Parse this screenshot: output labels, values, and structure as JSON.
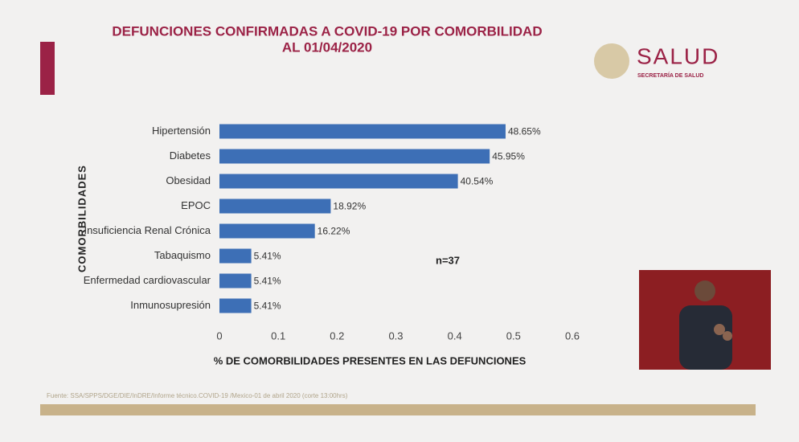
{
  "header": {
    "logo_title": "SALUD",
    "logo_subtitle": "SECRETARÍA DE SALUD"
  },
  "source": "Fuente: SSA/SPPS/DGE/DIE/InDRE/Informe técnico.COVID-19 /Mexico-01 de abril 2020 (corte 13:00hrs)",
  "chart_data": {
    "type": "bar",
    "orientation": "horizontal",
    "title": "DEFUNCIONES CONFIRMADAS A COVID-19 POR COMORBILIDAD",
    "subtitle": "AL 01/04/2020",
    "y_label": "COMORBILIDADES",
    "x_label": "% DE COMORBILIDADES PRESENTES EN LAS DEFUNCIONES",
    "annotation": "n=37",
    "categories": [
      "Hipertensión",
      "Diabetes",
      "Obesidad",
      "EPOC",
      "Insuficiencia Renal Crónica",
      "Tabaquismo",
      "Enfermedad cardiovascular",
      "Inmunosupresión"
    ],
    "values": [
      0.4865,
      0.4595,
      0.4054,
      0.1892,
      0.1622,
      0.0541,
      0.0541,
      0.0541
    ],
    "value_labels": [
      "48.65%",
      "45.95%",
      "40.54%",
      "18.92%",
      "16.22%",
      "5.41%",
      "5.41%",
      "5.41%"
    ],
    "color": "#3d6fb6",
    "xlim": [
      0,
      0.6
    ],
    "xticks": [
      0,
      0.1,
      0.2,
      0.3,
      0.4,
      0.5,
      0.6
    ],
    "grid": false
  }
}
